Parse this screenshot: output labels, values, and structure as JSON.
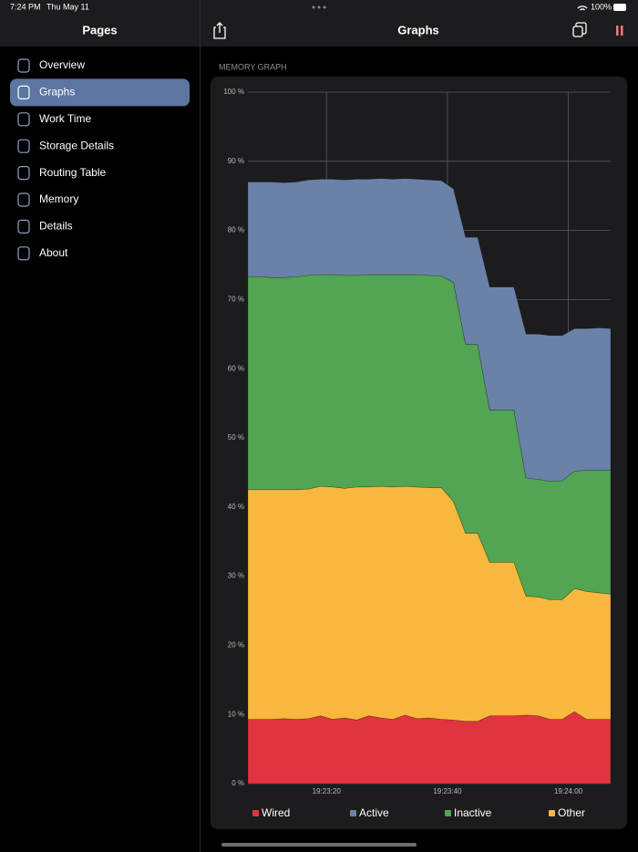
{
  "status_bar": {
    "time": "7:24 PM",
    "date": "Thu May 11",
    "battery": "100%"
  },
  "sidebar": {
    "title": "Pages",
    "items": [
      "Overview",
      "Graphs",
      "Work Time",
      "Storage Details",
      "Routing Table",
      "Memory",
      "Details",
      "About"
    ],
    "selected": 1
  },
  "header": {
    "title": "Graphs"
  },
  "section_title": "MEMORY GRAPH",
  "chart_data": {
    "type": "stacked_area",
    "x": [
      "19:23:07",
      "19:23:09",
      "19:23:11",
      "19:23:13",
      "19:23:15",
      "19:23:17",
      "19:23:19",
      "19:23:21",
      "19:23:23",
      "19:23:25",
      "19:23:27",
      "19:23:29",
      "19:23:31",
      "19:23:33",
      "19:23:35",
      "19:23:37",
      "19:23:39",
      "19:23:41",
      "19:23:43",
      "19:23:45",
      "19:23:47",
      "19:23:49",
      "19:23:51",
      "19:23:53",
      "19:23:55",
      "19:23:57",
      "19:23:59",
      "19:24:01",
      "19:24:03",
      "19:24:05",
      "19:24:07"
    ],
    "xlim": [
      "19:23:07",
      "19:24:07"
    ],
    "xticks": [
      "19:23:20",
      "19:23:40",
      "19:24:00"
    ],
    "ylim": [
      0,
      100
    ],
    "yticks": [
      {
        "value": 0,
        "label": "0 %"
      },
      {
        "value": 10,
        "label": "10 %"
      },
      {
        "value": 20,
        "label": "20 %"
      },
      {
        "value": 30,
        "label": "30 %"
      },
      {
        "value": 40,
        "label": "40 %"
      },
      {
        "value": 50,
        "label": "50 %"
      },
      {
        "value": 60,
        "label": "60 %"
      },
      {
        "value": 70,
        "label": "70 %"
      },
      {
        "value": 80,
        "label": "80 %"
      },
      {
        "value": 90,
        "label": "90 %"
      },
      {
        "value": 100,
        "label": "100 %"
      }
    ],
    "grid": true,
    "series": [
      {
        "name": "Wired",
        "color": "#e0353f",
        "values": [
          9.3,
          9.3,
          9.3,
          9.4,
          9.3,
          9.4,
          9.8,
          9.3,
          9.5,
          9.2,
          9.8,
          9.5,
          9.3,
          9.9,
          9.4,
          9.5,
          9.3,
          9.2,
          9.0,
          9.0,
          9.8,
          9.8,
          9.8,
          9.9,
          9.8,
          9.3,
          9.3,
          10.4,
          9.3,
          9.3,
          9.3
        ]
      },
      {
        "name": "Active",
        "color": "#6b82a8",
        "values": [
          13.7,
          13.7,
          13.8,
          13.7,
          13.7,
          13.8,
          13.8,
          13.8,
          13.8,
          13.9,
          13.8,
          13.9,
          13.8,
          13.9,
          13.8,
          13.8,
          13.8,
          13.5,
          15.5,
          15.5,
          17.8,
          17.8,
          17.8,
          20.8,
          21.0,
          21.1,
          21.0,
          20.6,
          20.5,
          20.6,
          20.5
        ]
      },
      {
        "name": "Inactive",
        "color": "#52a552",
        "values": [
          30.8,
          30.8,
          30.7,
          30.7,
          30.8,
          30.9,
          30.6,
          30.7,
          30.8,
          30.6,
          30.7,
          30.6,
          30.7,
          30.6,
          30.7,
          30.7,
          30.6,
          31.7,
          27.3,
          27.3,
          22.0,
          22.0,
          22.0,
          17.1,
          17.0,
          17.1,
          17.2,
          17.0,
          17.5,
          17.7,
          17.9
        ]
      },
      {
        "name": "Other",
        "color": "#f7b83d",
        "values": [
          33.2,
          33.2,
          33.2,
          33.1,
          33.2,
          33.2,
          33.2,
          33.6,
          33.2,
          33.7,
          33.1,
          33.5,
          33.6,
          33.1,
          33.5,
          33.3,
          33.5,
          31.6,
          27.2,
          27.2,
          22.2,
          22.2,
          22.2,
          17.2,
          17.2,
          17.3,
          17.3,
          17.8,
          18.5,
          18.3,
          18.1
        ]
      }
    ]
  }
}
